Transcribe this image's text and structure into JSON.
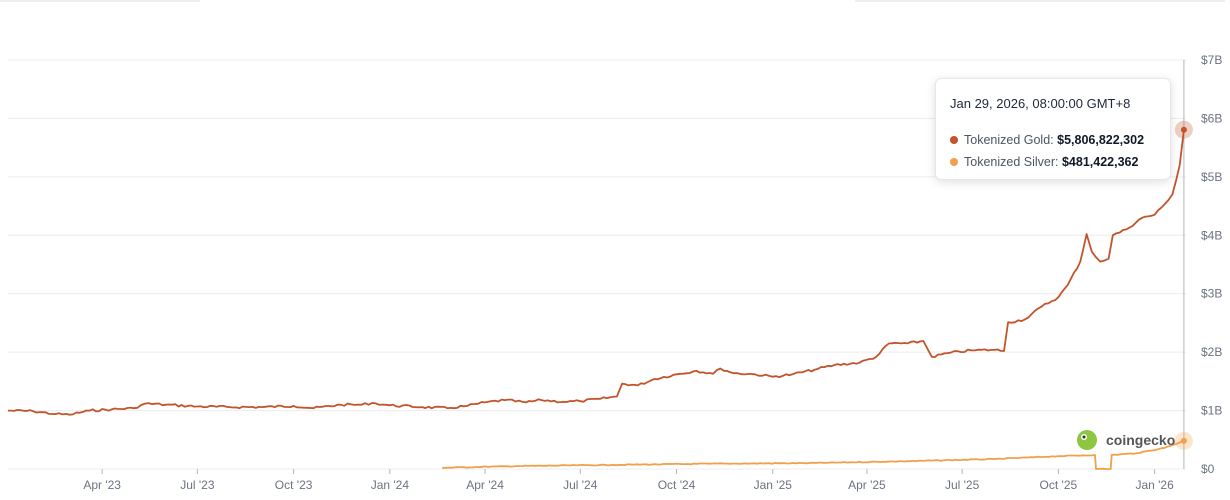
{
  "colors": {
    "gold": "#c2542b",
    "silver": "#f0a04b",
    "grid": "#ececec",
    "axis": "#b5b5b5"
  },
  "tooltip": {
    "date": "Jan 29, 2026, 08:00:00 GMT+8",
    "rows": [
      {
        "name": "Tokenized Gold",
        "value": "$5,806,822,302",
        "color": "#c2542b"
      },
      {
        "name": "Tokenized Silver",
        "value": "$481,422,362",
        "color": "#f0a04b"
      }
    ]
  },
  "watermark": {
    "text": "coingecko",
    "icon": "gecko-logo-icon"
  },
  "chart_data": {
    "type": "line",
    "x_unit": "date",
    "xlim": [
      "2023-01-01",
      "2026-01-31"
    ],
    "ylim": [
      0,
      7000000000
    ],
    "grid": true,
    "y_axis_position": "right",
    "x_ticks": [
      {
        "date": "2023-04-01",
        "label": "Apr '23"
      },
      {
        "date": "2023-07-01",
        "label": "Jul '23"
      },
      {
        "date": "2023-10-01",
        "label": "Oct '23"
      },
      {
        "date": "2024-01-01",
        "label": "Jan '24"
      },
      {
        "date": "2024-04-01",
        "label": "Apr '24"
      },
      {
        "date": "2024-07-01",
        "label": "Jul '24"
      },
      {
        "date": "2024-10-01",
        "label": "Oct '24"
      },
      {
        "date": "2025-01-01",
        "label": "Jan '25"
      },
      {
        "date": "2025-04-01",
        "label": "Apr '25"
      },
      {
        "date": "2025-07-01",
        "label": "Jul '25"
      },
      {
        "date": "2025-10-01",
        "label": "Oct '25"
      },
      {
        "date": "2026-01-01",
        "label": "Jan '26"
      }
    ],
    "y_ticks": [
      {
        "value": 0,
        "label": "$0"
      },
      {
        "value": 1000000000,
        "label": "$1B"
      },
      {
        "value": 2000000000,
        "label": "$2B"
      },
      {
        "value": 3000000000,
        "label": "$3B"
      },
      {
        "value": 4000000000,
        "label": "$4B"
      },
      {
        "value": 5000000000,
        "label": "$5B"
      },
      {
        "value": 6000000000,
        "label": "$6B"
      },
      {
        "value": 7000000000,
        "label": "$7B"
      }
    ],
    "series": [
      {
        "name": "Tokenized Gold",
        "color": "#c2542b",
        "points": [
          [
            "2023-01-01",
            1000000000
          ],
          [
            "2023-01-25",
            990000000
          ],
          [
            "2023-02-15",
            940000000
          ],
          [
            "2023-03-01",
            930000000
          ],
          [
            "2023-03-20",
            1000000000
          ],
          [
            "2023-04-10",
            1020000000
          ],
          [
            "2023-05-01",
            1040000000
          ],
          [
            "2023-05-12",
            1120000000
          ],
          [
            "2023-06-01",
            1100000000
          ],
          [
            "2023-07-01",
            1070000000
          ],
          [
            "2023-08-01",
            1060000000
          ],
          [
            "2023-09-01",
            1060000000
          ],
          [
            "2023-10-01",
            1080000000
          ],
          [
            "2023-10-20",
            1040000000
          ],
          [
            "2023-11-15",
            1100000000
          ],
          [
            "2023-12-05",
            1100000000
          ],
          [
            "2023-12-15",
            1130000000
          ],
          [
            "2024-01-01",
            1090000000
          ],
          [
            "2024-02-01",
            1060000000
          ],
          [
            "2024-02-25",
            1040000000
          ],
          [
            "2024-03-15",
            1080000000
          ],
          [
            "2024-04-01",
            1140000000
          ],
          [
            "2024-04-20",
            1180000000
          ],
          [
            "2024-05-10",
            1140000000
          ],
          [
            "2024-05-25",
            1180000000
          ],
          [
            "2024-06-15",
            1150000000
          ],
          [
            "2024-07-01",
            1160000000
          ],
          [
            "2024-07-20",
            1200000000
          ],
          [
            "2024-08-05",
            1240000000
          ],
          [
            "2024-08-10",
            1460000000
          ],
          [
            "2024-08-25",
            1430000000
          ],
          [
            "2024-09-10",
            1540000000
          ],
          [
            "2024-10-01",
            1620000000
          ],
          [
            "2024-10-20",
            1680000000
          ],
          [
            "2024-11-05",
            1630000000
          ],
          [
            "2024-11-12",
            1720000000
          ],
          [
            "2024-11-25",
            1640000000
          ],
          [
            "2024-12-15",
            1620000000
          ],
          [
            "2025-01-01",
            1580000000
          ],
          [
            "2025-01-20",
            1620000000
          ],
          [
            "2025-02-10",
            1700000000
          ],
          [
            "2025-03-01",
            1780000000
          ],
          [
            "2025-03-25",
            1820000000
          ],
          [
            "2025-04-10",
            1920000000
          ],
          [
            "2025-04-22",
            2150000000
          ],
          [
            "2025-05-10",
            2150000000
          ],
          [
            "2025-05-25",
            2190000000
          ],
          [
            "2025-06-02",
            1920000000
          ],
          [
            "2025-06-20",
            1990000000
          ],
          [
            "2025-07-10",
            2030000000
          ],
          [
            "2025-08-01",
            2040000000
          ],
          [
            "2025-08-10",
            2020000000
          ],
          [
            "2025-08-14",
            2510000000
          ],
          [
            "2025-08-30",
            2560000000
          ],
          [
            "2025-09-15",
            2780000000
          ],
          [
            "2025-10-01",
            2940000000
          ],
          [
            "2025-10-10",
            3150000000
          ],
          [
            "2025-10-22",
            3550000000
          ],
          [
            "2025-10-28",
            4020000000
          ],
          [
            "2025-11-02",
            3720000000
          ],
          [
            "2025-11-10",
            3550000000
          ],
          [
            "2025-11-18",
            3600000000
          ],
          [
            "2025-11-22",
            4000000000
          ],
          [
            "2025-12-05",
            4100000000
          ],
          [
            "2025-12-20",
            4300000000
          ],
          [
            "2026-01-01",
            4350000000
          ],
          [
            "2026-01-10",
            4520000000
          ],
          [
            "2026-01-18",
            4700000000
          ],
          [
            "2026-01-25",
            5200000000
          ],
          [
            "2026-01-29",
            5806822302
          ]
        ]
      },
      {
        "name": "Tokenized Silver",
        "color": "#f0a04b",
        "points": [
          [
            "2024-02-20",
            20000000
          ],
          [
            "2024-05-01",
            50000000
          ],
          [
            "2024-08-01",
            70000000
          ],
          [
            "2024-11-01",
            90000000
          ],
          [
            "2025-02-01",
            100000000
          ],
          [
            "2025-05-01",
            130000000
          ],
          [
            "2025-08-01",
            170000000
          ],
          [
            "2025-10-01",
            220000000
          ],
          [
            "2025-11-05",
            240000000
          ],
          [
            "2025-11-06",
            0
          ],
          [
            "2025-11-20",
            0
          ],
          [
            "2025-11-21",
            240000000
          ],
          [
            "2025-12-15",
            270000000
          ],
          [
            "2026-01-10",
            360000000
          ],
          [
            "2026-01-29",
            481422362
          ]
        ]
      }
    ]
  }
}
